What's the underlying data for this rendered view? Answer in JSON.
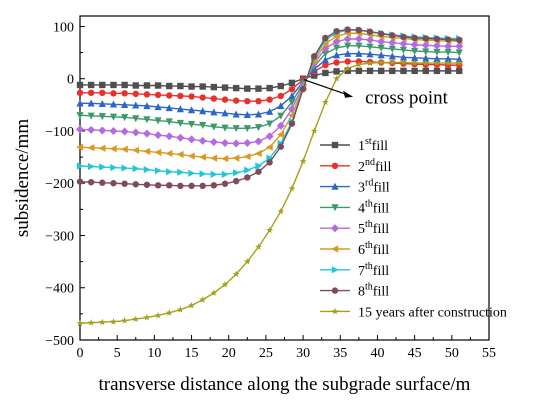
{
  "chart_data": {
    "type": "line",
    "xlabel": "transverse distance along the subgrade surface/m",
    "ylabel": "subsidence/mm",
    "xlim": [
      0,
      55
    ],
    "ylim": [
      -500,
      120
    ],
    "x_ticks": [
      0,
      5,
      10,
      15,
      20,
      25,
      30,
      35,
      40,
      45,
      50,
      55
    ],
    "y_ticks": [
      -500,
      -400,
      -300,
      -200,
      -100,
      0,
      100
    ],
    "legend_placement": "center-right",
    "annotation": {
      "text": "cross point",
      "at": [
        30,
        0
      ]
    },
    "x": [
      0,
      1.5,
      3,
      4.5,
      6,
      7.5,
      9,
      10.5,
      12,
      13.5,
      15,
      16.5,
      18,
      19.5,
      21,
      22.5,
      24,
      25.5,
      27,
      28.5,
      30,
      31.5,
      33,
      34.5,
      36,
      37.5,
      39,
      40.5,
      42,
      43.5,
      45,
      46.5,
      48,
      49.5,
      51
    ],
    "series": [
      {
        "name": "1st fill",
        "base": "1",
        "sup": "st",
        "rest": "fill",
        "color": "#4f4f4f",
        "marker": "square",
        "values": [
          -12,
          -12,
          -12,
          -12,
          -12,
          -13,
          -13,
          -13,
          -14,
          -14,
          -15,
          -15,
          -16,
          -17,
          -18,
          -19,
          -19,
          -18,
          -14,
          -8,
          0,
          6,
          11,
          14,
          15,
          15,
          15,
          15,
          15,
          15,
          15,
          15,
          15,
          15,
          15
        ]
      },
      {
        "name": "2nd fill",
        "base": "2",
        "sup": "nd",
        "rest": "fill",
        "color": "#e8312c",
        "marker": "circle",
        "values": [
          -27,
          -27,
          -27,
          -28,
          -28,
          -29,
          -30,
          -31,
          -32,
          -33,
          -34,
          -36,
          -38,
          -40,
          -42,
          -43,
          -43,
          -40,
          -33,
          -20,
          -2,
          14,
          26,
          31,
          33,
          33,
          32,
          31,
          30,
          29,
          28,
          27,
          27,
          26,
          26
        ]
      },
      {
        "name": "3rd fill",
        "base": "3",
        "sup": "rd",
        "rest": "fill",
        "color": "#2b66c8",
        "marker": "triangle-up",
        "values": [
          -47,
          -47,
          -48,
          -49,
          -50,
          -51,
          -52,
          -54,
          -56,
          -58,
          -60,
          -62,
          -64,
          -66,
          -68,
          -69,
          -68,
          -63,
          -52,
          -33,
          -6,
          18,
          36,
          45,
          48,
          48,
          47,
          45,
          43,
          41,
          40,
          39,
          38,
          38,
          37
        ]
      },
      {
        "name": "4th fill",
        "base": "4",
        "sup": "th",
        "rest": "fill",
        "color": "#3a9a6a",
        "marker": "triangle-down",
        "values": [
          -70,
          -71,
          -72,
          -73,
          -74,
          -76,
          -78,
          -80,
          -82,
          -85,
          -87,
          -89,
          -92,
          -94,
          -95,
          -95,
          -93,
          -86,
          -71,
          -45,
          -9,
          24,
          48,
          59,
          63,
          63,
          61,
          59,
          57,
          55,
          53,
          52,
          51,
          51,
          50
        ]
      },
      {
        "name": "5th fill",
        "base": "5",
        "sup": "th",
        "rest": "fill",
        "color": "#b46ae0",
        "marker": "diamond",
        "values": [
          -97,
          -98,
          -99,
          -100,
          -101,
          -103,
          -105,
          -108,
          -110,
          -113,
          -116,
          -119,
          -121,
          -123,
          -124,
          -123,
          -120,
          -110,
          -90,
          -58,
          -12,
          29,
          58,
          71,
          76,
          76,
          74,
          71,
          69,
          67,
          65,
          64,
          63,
          62,
          62
        ]
      },
      {
        "name": "6th fill",
        "base": "6",
        "sup": "th",
        "rest": "fill",
        "color": "#d99a1e",
        "marker": "triangle-left",
        "values": [
          -131,
          -132,
          -133,
          -134,
          -135,
          -137,
          -139,
          -141,
          -143,
          -145,
          -148,
          -150,
          -152,
          -153,
          -152,
          -149,
          -143,
          -131,
          -107,
          -70,
          -15,
          34,
          67,
          81,
          87,
          87,
          84,
          81,
          79,
          77,
          75,
          74,
          73,
          72,
          72
        ]
      },
      {
        "name": "7th fill",
        "base": "7",
        "sup": "th",
        "rest": "fill",
        "color": "#22c7d6",
        "marker": "triangle-right",
        "values": [
          -167,
          -168,
          -169,
          -170,
          -171,
          -172,
          -174,
          -176,
          -178,
          -179,
          -181,
          -182,
          -183,
          -183,
          -180,
          -175,
          -167,
          -152,
          -124,
          -82,
          -18,
          39,
          74,
          88,
          93,
          93,
          90,
          87,
          84,
          82,
          80,
          79,
          78,
          77,
          77
        ]
      },
      {
        "name": "8th fill",
        "base": "8",
        "sup": "th",
        "rest": "fill",
        "color": "#7e4b5a",
        "marker": "circle",
        "values": [
          -197,
          -198,
          -199,
          -200,
          -201,
          -202,
          -203,
          -204,
          -204,
          -205,
          -205,
          -205,
          -204,
          -201,
          -196,
          -189,
          -178,
          -160,
          -130,
          -86,
          -20,
          43,
          78,
          91,
          94,
          93,
          90,
          86,
          83,
          80,
          78,
          77,
          76,
          75,
          74
        ]
      },
      {
        "name": "15 years after construction",
        "base": "15 years after construction",
        "sup": "",
        "rest": "",
        "color": "#a8a01a",
        "marker": "star",
        "values": [
          -468,
          -467,
          -466,
          -465,
          -463,
          -460,
          -457,
          -453,
          -448,
          -442,
          -434,
          -423,
          -410,
          -394,
          -374,
          -350,
          -322,
          -290,
          -254,
          -210,
          -158,
          -100,
          -45,
          0,
          20,
          27,
          30,
          31,
          31,
          31,
          30,
          30,
          30,
          30,
          30
        ]
      }
    ]
  }
}
